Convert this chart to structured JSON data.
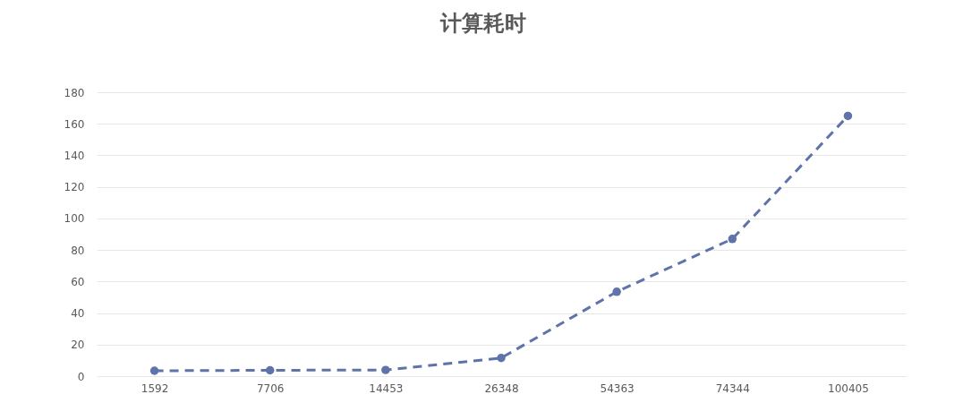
{
  "chart_data": {
    "type": "line",
    "title": "计算耗时",
    "categories": [
      "1592",
      "7706",
      "14453",
      "26348",
      "54363",
      "74344",
      "100405"
    ],
    "series": [
      {
        "color": "#5f73ab",
        "values": [
          3.4,
          3.7,
          3.9,
          11.5,
          53.5,
          87,
          165
        ]
      }
    ],
    "ylim": [
      0,
      180
    ],
    "yticks": [
      0,
      20,
      40,
      60,
      80,
      100,
      120,
      140,
      160,
      180
    ],
    "grid": "y",
    "marker": "circle",
    "line_style": "dashed",
    "legend": false
  }
}
